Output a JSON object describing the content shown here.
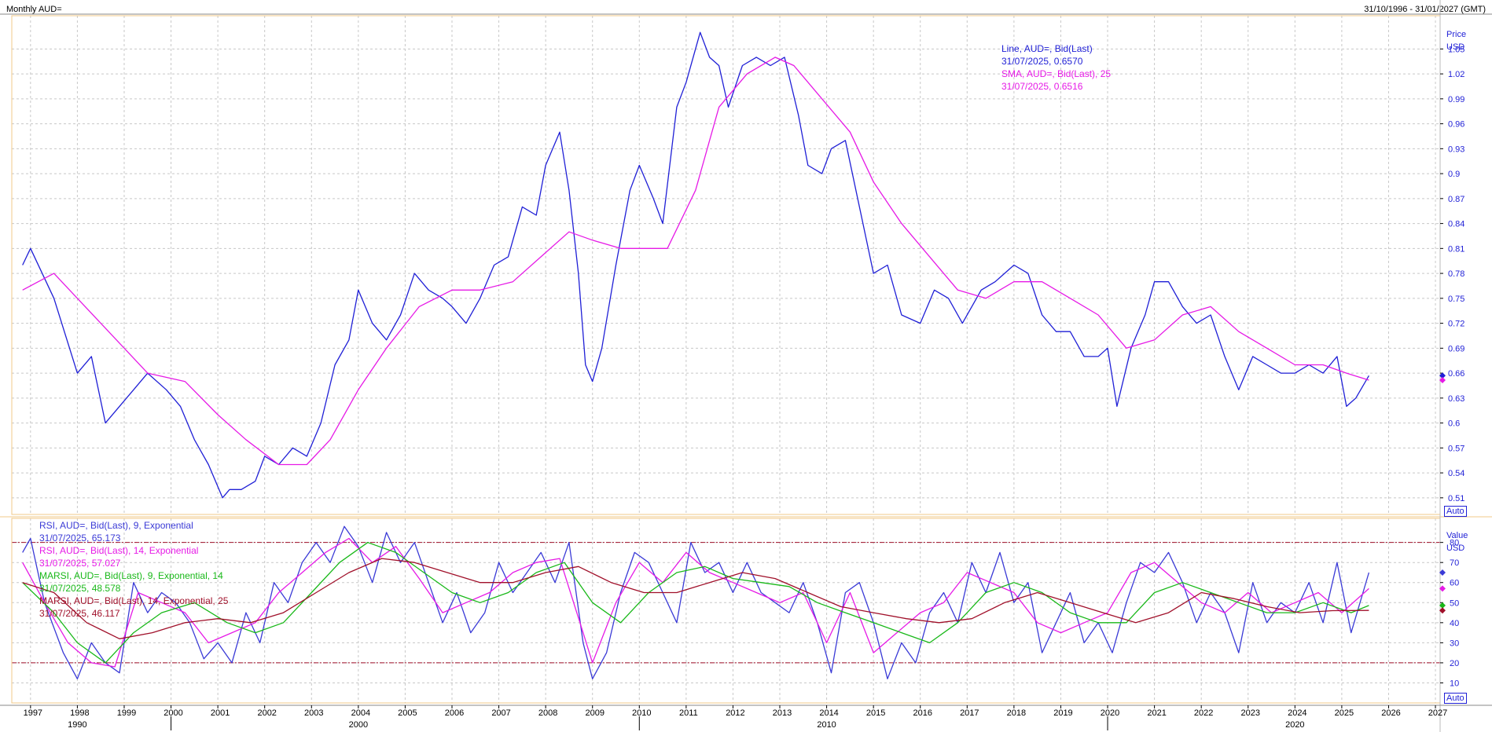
{
  "header": {
    "title": "Monthly AUD=",
    "date_range": "31/10/1996 - 31/01/2027 (GMT)"
  },
  "price_panel": {
    "axis_title": "Price",
    "axis_unit": "USD",
    "auto_label": "Auto",
    "legend": [
      {
        "text": "Line, AUD=, Bid(Last)",
        "color": "#1f1fd6"
      },
      {
        "text": "31/07/2025, 0.6570",
        "color": "#1f1fd6"
      },
      {
        "text": "SMA, AUD=, Bid(Last),  25",
        "color": "#e61ae6"
      },
      {
        "text": "31/07/2025, 0.6516",
        "color": "#e61ae6"
      }
    ]
  },
  "rsi_panel": {
    "axis_title": "Value",
    "axis_unit": "USD",
    "auto_label": "Auto",
    "legend": [
      {
        "text": "RSI, AUD=, Bid(Last),  9, Exponential",
        "color": "#3a3ad6"
      },
      {
        "text": "31/07/2025, 65.173",
        "color": "#3a3ad6"
      },
      {
        "text": "RSI, AUD=, Bid(Last),  14, Exponential",
        "color": "#e61ae6"
      },
      {
        "text": "31/07/2025, 57.027",
        "color": "#e61ae6"
      },
      {
        "text": "MARSI, AUD=, Bid(Last),  9, Exponential, 14",
        "color": "#19b819"
      },
      {
        "text": "31/07/2025, 48.578",
        "color": "#19b819"
      },
      {
        "text": "MARSI, AUD=, Bid(Last),  14, Exponential, 25",
        "color": "#a0102a"
      },
      {
        "text": "31/07/2025, 46.117",
        "color": "#a0102a"
      }
    ]
  },
  "x_axis": {
    "year_labels": [
      "1997",
      "1998",
      "1999",
      "2000",
      "2001",
      "2002",
      "2003",
      "2004",
      "2005",
      "2006",
      "2007",
      "2008",
      "2009",
      "2010",
      "2011",
      "2012",
      "2013",
      "2014",
      "2015",
      "2016",
      "2017",
      "2018",
      "2019",
      "2020",
      "2021",
      "2022",
      "2023",
      "2024",
      "2025",
      "2026",
      "2027"
    ],
    "decade_labels": [
      "1990",
      "2000",
      "2010",
      "2020"
    ]
  },
  "chart_data": [
    {
      "type": "line",
      "ylim": [
        0.49,
        1.09
      ],
      "yticks": [
        "0.51",
        "0.54",
        "0.57",
        "0.6",
        "0.63",
        "0.66",
        "0.69",
        "0.72",
        "0.75",
        "0.78",
        "0.81",
        "0.84",
        "0.87",
        "0.9",
        "0.93",
        "0.96",
        "0.99",
        "1.02",
        "1.05"
      ],
      "grid": true,
      "legend_position": "top-right",
      "series": [
        {
          "name": "Line, AUD=, Bid(Last)",
          "color": "#1f1fd6",
          "x": [
            1996.83,
            1997.0,
            1997.5,
            1998.0,
            1998.3,
            1998.6,
            1998.9,
            1999.2,
            1999.5,
            1999.9,
            2000.2,
            2000.5,
            2000.8,
            2001.1,
            2001.25,
            2001.5,
            2001.8,
            2002.0,
            2002.3,
            2002.6,
            2002.9,
            2003.2,
            2003.5,
            2003.8,
            2004.0,
            2004.3,
            2004.6,
            2004.9,
            2005.2,
            2005.5,
            2005.8,
            2006.0,
            2006.3,
            2006.6,
            2006.9,
            2007.2,
            2007.5,
            2007.8,
            2008.0,
            2008.3,
            2008.5,
            2008.7,
            2008.85,
            2009.0,
            2009.2,
            2009.5,
            2009.8,
            2010.0,
            2010.3,
            2010.5,
            2010.8,
            2011.0,
            2011.3,
            2011.5,
            2011.7,
            2011.9,
            2012.2,
            2012.5,
            2012.8,
            2013.1,
            2013.4,
            2013.6,
            2013.9,
            2014.1,
            2014.4,
            2014.7,
            2015.0,
            2015.3,
            2015.6,
            2016.0,
            2016.3,
            2016.6,
            2016.9,
            2017.3,
            2017.6,
            2018.0,
            2018.3,
            2018.6,
            2018.9,
            2019.2,
            2019.5,
            2019.8,
            2020.0,
            2020.2,
            2020.5,
            2020.8,
            2021.0,
            2021.3,
            2021.6,
            2021.9,
            2022.2,
            2022.5,
            2022.8,
            2023.1,
            2023.4,
            2023.7,
            2024.0,
            2024.3,
            2024.6,
            2024.9,
            2025.1,
            2025.3,
            2025.58
          ],
          "y": [
            0.79,
            0.81,
            0.75,
            0.66,
            0.68,
            0.6,
            0.62,
            0.64,
            0.66,
            0.64,
            0.62,
            0.58,
            0.55,
            0.51,
            0.52,
            0.52,
            0.53,
            0.56,
            0.55,
            0.57,
            0.56,
            0.6,
            0.67,
            0.7,
            0.76,
            0.72,
            0.7,
            0.73,
            0.78,
            0.76,
            0.75,
            0.74,
            0.72,
            0.75,
            0.79,
            0.8,
            0.86,
            0.85,
            0.91,
            0.95,
            0.88,
            0.78,
            0.67,
            0.65,
            0.69,
            0.79,
            0.88,
            0.91,
            0.87,
            0.84,
            0.98,
            1.01,
            1.07,
            1.04,
            1.03,
            0.98,
            1.03,
            1.04,
            1.03,
            1.04,
            0.97,
            0.91,
            0.9,
            0.93,
            0.94,
            0.86,
            0.78,
            0.79,
            0.73,
            0.72,
            0.76,
            0.75,
            0.72,
            0.76,
            0.77,
            0.79,
            0.78,
            0.73,
            0.71,
            0.71,
            0.68,
            0.68,
            0.69,
            0.62,
            0.69,
            0.73,
            0.77,
            0.77,
            0.74,
            0.72,
            0.73,
            0.68,
            0.64,
            0.68,
            0.67,
            0.66,
            0.66,
            0.67,
            0.66,
            0.68,
            0.62,
            0.63,
            0.657
          ]
        },
        {
          "name": "SMA, AUD=, Bid(Last),  25",
          "color": "#e61ae6",
          "x": [
            1996.83,
            1997.5,
            1998.5,
            1999.5,
            2000.3,
            2001.0,
            2001.6,
            2002.3,
            2002.9,
            2003.4,
            2004.0,
            2004.6,
            2005.3,
            2006.0,
            2006.6,
            2007.3,
            2007.9,
            2008.5,
            2009.0,
            2009.6,
            2010.2,
            2010.6,
            2011.2,
            2011.7,
            2012.3,
            2012.9,
            2013.3,
            2013.9,
            2014.5,
            2015.0,
            2015.6,
            2016.2,
            2016.8,
            2017.4,
            2018.0,
            2018.6,
            2019.2,
            2019.8,
            2020.4,
            2021.0,
            2021.6,
            2022.2,
            2022.8,
            2023.4,
            2024.0,
            2024.6,
            2025.1,
            2025.58
          ],
          "y": [
            0.76,
            0.78,
            0.72,
            0.66,
            0.65,
            0.61,
            0.58,
            0.55,
            0.55,
            0.58,
            0.64,
            0.69,
            0.74,
            0.76,
            0.76,
            0.77,
            0.8,
            0.83,
            0.82,
            0.81,
            0.81,
            0.81,
            0.88,
            0.98,
            1.02,
            1.04,
            1.03,
            0.99,
            0.95,
            0.89,
            0.84,
            0.8,
            0.76,
            0.75,
            0.77,
            0.77,
            0.75,
            0.73,
            0.69,
            0.7,
            0.73,
            0.74,
            0.71,
            0.69,
            0.67,
            0.67,
            0.66,
            0.6516
          ]
        }
      ]
    },
    {
      "type": "line",
      "ylim": [
        0,
        92
      ],
      "yticks": [
        "10",
        "20",
        "30",
        "40",
        "50",
        "60",
        "70",
        "80"
      ],
      "reference_lines": [
        80,
        20
      ],
      "grid": true,
      "legend_position": "top-left",
      "series": [
        {
          "name": "RSI, AUD=, Bid(Last),  9, Exponential",
          "color": "#3a3ad6",
          "x": [
            1996.83,
            1997.0,
            1997.3,
            1997.7,
            1998.0,
            1998.3,
            1998.6,
            1998.9,
            1999.2,
            1999.5,
            1999.8,
            2000.1,
            2000.4,
            2000.7,
            2001.0,
            2001.3,
            2001.6,
            2001.9,
            2002.2,
            2002.5,
            2002.8,
            2003.1,
            2003.4,
            2003.7,
            2004.0,
            2004.3,
            2004.6,
            2004.9,
            2005.2,
            2005.5,
            2005.8,
            2006.1,
            2006.4,
            2006.7,
            2007.0,
            2007.3,
            2007.6,
            2007.9,
            2008.2,
            2008.5,
            2008.8,
            2009.0,
            2009.3,
            2009.6,
            2009.9,
            2010.2,
            2010.5,
            2010.8,
            2011.1,
            2011.4,
            2011.7,
            2012.0,
            2012.3,
            2012.6,
            2012.9,
            2013.2,
            2013.5,
            2013.8,
            2014.1,
            2014.4,
            2014.7,
            2015.0,
            2015.3,
            2015.6,
            2015.9,
            2016.2,
            2016.5,
            2016.8,
            2017.1,
            2017.4,
            2017.7,
            2018.0,
            2018.3,
            2018.6,
            2018.9,
            2019.2,
            2019.5,
            2019.8,
            2020.1,
            2020.4,
            2020.7,
            2021.0,
            2021.3,
            2021.6,
            2021.9,
            2022.2,
            2022.5,
            2022.8,
            2023.1,
            2023.4,
            2023.7,
            2024.0,
            2024.3,
            2024.6,
            2024.9,
            2025.2,
            2025.58
          ],
          "y": [
            75,
            82,
            50,
            25,
            12,
            30,
            20,
            15,
            60,
            45,
            55,
            50,
            40,
            22,
            30,
            20,
            45,
            30,
            60,
            50,
            70,
            80,
            70,
            88,
            78,
            60,
            85,
            70,
            80,
            60,
            40,
            55,
            35,
            45,
            70,
            55,
            65,
            75,
            60,
            80,
            30,
            12,
            25,
            55,
            75,
            70,
            55,
            40,
            80,
            65,
            70,
            55,
            70,
            55,
            50,
            45,
            60,
            40,
            15,
            55,
            60,
            40,
            12,
            30,
            20,
            45,
            55,
            40,
            70,
            55,
            75,
            50,
            60,
            25,
            40,
            55,
            30,
            40,
            25,
            50,
            70,
            65,
            75,
            60,
            40,
            55,
            45,
            25,
            60,
            40,
            50,
            45,
            60,
            40,
            70,
            35,
            65
          ]
        },
        {
          "name": "RSI, AUD=, Bid(Last),  14, Exponential",
          "color": "#e61ae6",
          "x": [
            1996.83,
            1997.3,
            1997.8,
            1998.3,
            1998.8,
            1999.3,
            1999.8,
            2000.3,
            2000.8,
            2001.3,
            2001.8,
            2002.3,
            2002.8,
            2003.3,
            2003.8,
            2004.3,
            2004.8,
            2005.3,
            2005.8,
            2006.3,
            2006.8,
            2007.3,
            2007.8,
            2008.3,
            2008.8,
            2009.0,
            2009.5,
            2010.0,
            2010.5,
            2011.0,
            2011.5,
            2012.0,
            2012.5,
            2013.0,
            2013.5,
            2014.0,
            2014.5,
            2015.0,
            2015.5,
            2016.0,
            2016.5,
            2017.0,
            2017.5,
            2018.0,
            2018.5,
            2019.0,
            2019.5,
            2020.0,
            2020.5,
            2021.0,
            2021.5,
            2022.0,
            2022.5,
            2023.0,
            2023.5,
            2024.0,
            2024.5,
            2025.0,
            2025.58
          ],
          "y": [
            70,
            50,
            30,
            20,
            18,
            55,
            50,
            45,
            30,
            35,
            40,
            55,
            65,
            75,
            82,
            70,
            78,
            62,
            45,
            50,
            55,
            65,
            70,
            72,
            35,
            20,
            50,
            70,
            60,
            75,
            65,
            60,
            55,
            50,
            55,
            30,
            55,
            25,
            35,
            45,
            50,
            65,
            60,
            55,
            40,
            35,
            40,
            45,
            65,
            70,
            60,
            50,
            45,
            55,
            45,
            50,
            55,
            45,
            57
          ]
        },
        {
          "name": "MARSI, AUD=, Bid(Last),  9, Exponential, 14",
          "color": "#19b819",
          "x": [
            1996.83,
            1997.5,
            1998.0,
            1998.6,
            1999.2,
            1999.8,
            2000.5,
            2001.2,
            2001.8,
            2002.4,
            2003.0,
            2003.6,
            2004.2,
            2004.8,
            2005.4,
            2006.0,
            2006.6,
            2007.2,
            2007.8,
            2008.4,
            2009.0,
            2009.6,
            2010.2,
            2010.8,
            2011.4,
            2012.0,
            2012.6,
            2013.2,
            2013.8,
            2014.4,
            2015.0,
            2015.6,
            2016.2,
            2016.8,
            2017.4,
            2018.0,
            2018.6,
            2019.2,
            2019.8,
            2020.4,
            2021.0,
            2021.6,
            2022.2,
            2022.8,
            2023.4,
            2024.0,
            2024.6,
            2025.2,
            2025.58
          ],
          "y": [
            60,
            45,
            30,
            20,
            35,
            45,
            50,
            40,
            35,
            40,
            55,
            70,
            80,
            75,
            65,
            55,
            50,
            55,
            65,
            70,
            50,
            40,
            55,
            65,
            68,
            62,
            60,
            58,
            50,
            45,
            40,
            35,
            30,
            40,
            55,
            60,
            55,
            45,
            40,
            40,
            55,
            60,
            55,
            50,
            45,
            45,
            50,
            45,
            48.6
          ]
        },
        {
          "name": "MARSI, AUD=, Bid(Last),  14, Exponential, 25",
          "color": "#a0102a",
          "x": [
            1996.83,
            1997.5,
            1998.2,
            1998.9,
            1999.6,
            2000.3,
            2001.0,
            2001.7,
            2002.4,
            2003.1,
            2003.8,
            2004.5,
            2005.2,
            2005.9,
            2006.6,
            2007.3,
            2008.0,
            2008.7,
            2009.4,
            2010.1,
            2010.8,
            2011.5,
            2012.2,
            2012.9,
            2013.6,
            2014.3,
            2015.0,
            2015.7,
            2016.4,
            2017.1,
            2017.8,
            2018.5,
            2019.2,
            2019.9,
            2020.6,
            2021.3,
            2022.0,
            2022.7,
            2023.4,
            2024.1,
            2024.8,
            2025.58
          ],
          "y": [
            60,
            55,
            40,
            32,
            35,
            40,
            42,
            40,
            45,
            55,
            65,
            72,
            70,
            65,
            60,
            60,
            65,
            68,
            60,
            55,
            55,
            60,
            65,
            62,
            55,
            48,
            45,
            42,
            40,
            42,
            50,
            55,
            50,
            45,
            40,
            45,
            55,
            52,
            48,
            45,
            46,
            46.1
          ]
        }
      ]
    }
  ]
}
